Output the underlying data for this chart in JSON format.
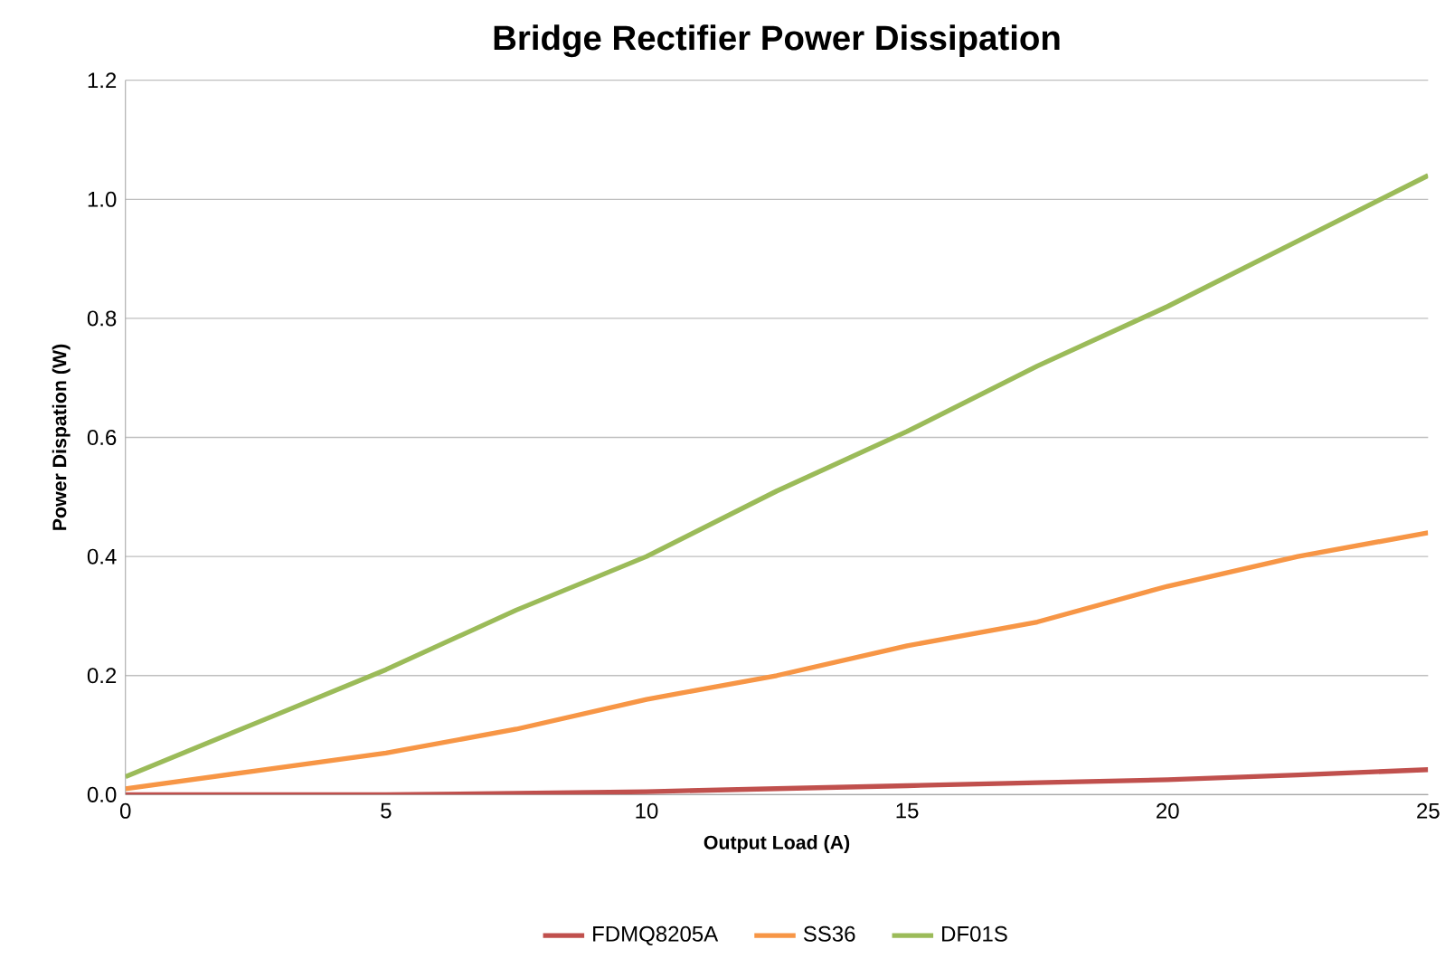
{
  "chart_data": {
    "type": "line",
    "title": "Bridge Rectifier Power Dissipation",
    "xlabel": "Output Load (A)",
    "ylabel": "Power Dispation (W)",
    "x": [
      0,
      2.5,
      5,
      7.5,
      10,
      12.5,
      15,
      17.5,
      20,
      22.5,
      25
    ],
    "series": [
      {
        "name": "FDMQ8205A",
        "color": "#c0504d",
        "values": [
          0,
          0,
          0,
          0.002,
          0.005,
          0.01,
          0.015,
          0.02,
          0.025,
          0.033,
          0.042
        ]
      },
      {
        "name": "SS36",
        "color": "#f79646",
        "values": [
          0.01,
          0.04,
          0.07,
          0.11,
          0.16,
          0.2,
          0.25,
          0.29,
          0.35,
          0.4,
          0.44
        ]
      },
      {
        "name": "DF01S",
        "color": "#9bbb59",
        "values": [
          0.03,
          0.12,
          0.21,
          0.31,
          0.4,
          0.51,
          0.61,
          0.72,
          0.82,
          0.93,
          1.04
        ]
      }
    ],
    "xlim": [
      0,
      25
    ],
    "xticks": [
      0,
      5,
      10,
      15,
      20,
      25
    ],
    "ylim": [
      0,
      1.2
    ],
    "yticks": [
      {
        "value": 0,
        "label": "0.0"
      },
      {
        "value": 0.2,
        "label": "0.2"
      },
      {
        "value": 0.4,
        "label": "0.4"
      },
      {
        "value": 0.6,
        "label": "0.6"
      },
      {
        "value": 0.8,
        "label": "0.8"
      },
      {
        "value": 1.0,
        "label": "1.0"
      },
      {
        "value": 1.2,
        "label": "1.2"
      }
    ],
    "grid": "y",
    "legend": "bottom",
    "marker": "none",
    "line_style": "solid"
  }
}
